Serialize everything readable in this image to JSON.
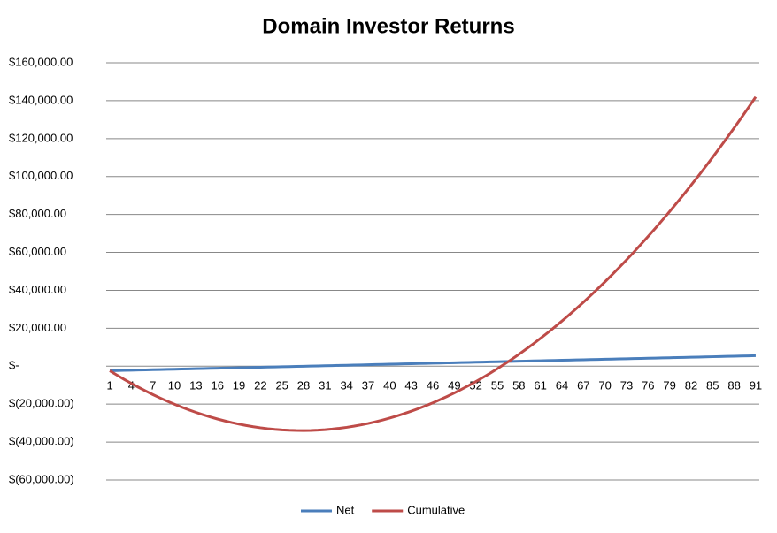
{
  "chart_data": {
    "type": "line",
    "title": "Domain Investor Returns",
    "categories": [
      "1",
      null,
      null,
      "4",
      null,
      null,
      "7",
      null,
      null,
      "10",
      null,
      null,
      "13",
      null,
      null,
      "16",
      null,
      null,
      "19",
      null,
      null,
      "22",
      null,
      null,
      "25",
      null,
      null,
      "28",
      null,
      null,
      "31",
      null,
      null,
      "34",
      null,
      null,
      "37",
      null,
      null,
      "40",
      null,
      null,
      "43",
      null,
      null,
      "46",
      null,
      null,
      "49",
      null,
      null,
      "52",
      null,
      null,
      "55",
      null,
      null,
      "58",
      null,
      null,
      "61",
      null,
      null,
      "64",
      null,
      null,
      "67",
      null,
      null,
      "70",
      null,
      null,
      "73",
      null,
      null,
      "76",
      null,
      null,
      "79",
      null,
      null,
      "82",
      null,
      null,
      "85",
      null,
      null,
      "88",
      null,
      null,
      "91"
    ],
    "series": [
      {
        "name": "Net",
        "color": "#4a7ebb",
        "values": [
          -2400,
          -2312,
          -2224,
          -2136,
          -2048,
          -1960,
          -1872,
          -1784,
          -1696,
          -1608,
          -1520,
          -1432,
          -1344,
          -1256,
          -1168,
          -1080,
          -992,
          -904,
          -816,
          -728,
          -640,
          -552,
          -464,
          -376,
          -288,
          -200,
          -112,
          -24,
          64,
          152,
          240,
          328,
          416,
          504,
          592,
          680,
          768,
          856,
          944,
          1032,
          1120,
          1208,
          1296,
          1384,
          1472,
          1560,
          1648,
          1736,
          1824,
          1912,
          2000,
          2088,
          2176,
          2264,
          2352,
          2440,
          2528,
          2616,
          2704,
          2792,
          2880,
          2968,
          3056,
          3144,
          3232,
          3320,
          3408,
          3496,
          3584,
          3672,
          3760,
          3848,
          3936,
          4024,
          4112,
          4200,
          4288,
          4376,
          4464,
          4552,
          4640,
          4728,
          4816,
          4904,
          4992,
          5080,
          5168,
          5256,
          5344,
          5432,
          5520
        ]
      },
      {
        "name": "Cumulative",
        "color": "#be4b48",
        "values": [
          -2400,
          -4712,
          -6936,
          -9072,
          -11120,
          -13080,
          -14952,
          -16736,
          -18432,
          -20040,
          -21560,
          -22992,
          -24336,
          -25592,
          -26760,
          -27840,
          -28832,
          -29736,
          -30552,
          -31280,
          -31920,
          -32472,
          -32936,
          -33312,
          -33600,
          -33800,
          -33912,
          -33936,
          -33872,
          -33720,
          -33480,
          -33152,
          -32736,
          -32232,
          -31640,
          -30960,
          -30192,
          -29336,
          -28392,
          -27360,
          -26240,
          -25032,
          -23736,
          -22352,
          -20880,
          -19320,
          -17672,
          -15936,
          -14112,
          -12200,
          -10200,
          -8112,
          -5936,
          -3672,
          -1320,
          1120,
          3648,
          6264,
          8968,
          11760,
          14640,
          17608,
          20664,
          23808,
          27040,
          30360,
          33768,
          37264,
          40848,
          44520,
          48280,
          52128,
          56064,
          60088,
          64200,
          68400,
          72688,
          77064,
          81528,
          86080,
          90720,
          95448,
          100264,
          105168,
          110160,
          115240,
          120408,
          125664,
          131008,
          136440,
          141960
        ]
      }
    ],
    "ylim": [
      -60000,
      160000
    ],
    "yticks": [
      {
        "value": -60000,
        "label": "$(60,000.00)"
      },
      {
        "value": -40000,
        "label": "$(40,000.00)"
      },
      {
        "value": -20000,
        "label": "$(20,000.00)"
      },
      {
        "value": 0,
        "label": "$-"
      },
      {
        "value": 20000,
        "label": "$20,000.00"
      },
      {
        "value": 40000,
        "label": "$40,000.00"
      },
      {
        "value": 60000,
        "label": "$60,000.00"
      },
      {
        "value": 80000,
        "label": "$80,000.00"
      },
      {
        "value": 100000,
        "label": "$100,000.00"
      },
      {
        "value": 120000,
        "label": "$120,000.00"
      },
      {
        "value": 140000,
        "label": "$140,000.00"
      },
      {
        "value": 160000,
        "label": "$160,000.00"
      }
    ],
    "grid": true,
    "legend": "bottom"
  }
}
